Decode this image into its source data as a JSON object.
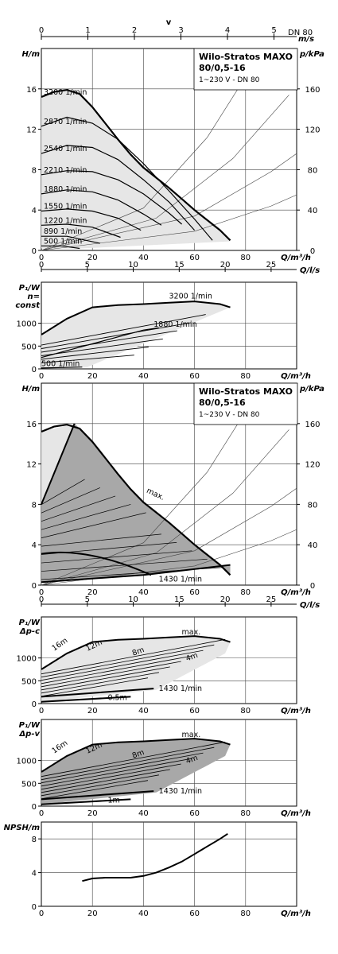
{
  "top_axis": {
    "label_v": "v",
    "ticks": [
      "0",
      "1",
      "2",
      "3",
      "4",
      "5"
    ],
    "dn_label": "DN 80",
    "unit": "m/s"
  },
  "info_box": {
    "title_line1": "Wilo-Stratos MAXO",
    "title_line2": "80/0,5-16",
    "subtitle": "1~230 V - DN 80"
  },
  "chart_data": [
    {
      "id": "hq_speed",
      "type": "line",
      "ylabel": "H/m",
      "ylabel_right": "p/kPa",
      "xlabel": "Q/m³/h",
      "xlim": [
        0,
        100
      ],
      "ylim": [
        0,
        20
      ],
      "xticks": [
        "0",
        "20",
        "40",
        "60",
        "80"
      ],
      "yticks": [
        "0",
        "4",
        "8",
        "12",
        "16"
      ],
      "yticks_right": [
        "0",
        "40",
        "80",
        "120",
        "160"
      ],
      "series": [
        {
          "name": "3200 1/min",
          "x": [
            0,
            5,
            10,
            15,
            20,
            25,
            30,
            35,
            40,
            45,
            50,
            55,
            60,
            65,
            70,
            74
          ],
          "y": [
            15.2,
            15.7,
            15.9,
            15.5,
            14.2,
            12.6,
            11.0,
            9.5,
            8.2,
            7.2,
            6.2,
            5.1,
            4.0,
            3.0,
            2.0,
            1.0
          ]
        },
        {
          "name": "2870 1/min",
          "x": [
            0,
            10,
            20,
            30,
            40,
            50,
            60,
            67
          ],
          "y": [
            12.3,
            13.2,
            12.6,
            11.0,
            8.6,
            5.9,
            3.1,
            1.0
          ]
        },
        {
          "name": "2540 1/min",
          "x": [
            0,
            10,
            20,
            30,
            40,
            50,
            60
          ],
          "y": [
            9.6,
            10.4,
            10.2,
            9.0,
            7.0,
            4.8,
            2.0
          ]
        },
        {
          "name": "2210 1/min",
          "x": [
            0,
            10,
            20,
            30,
            40,
            50,
            55
          ],
          "y": [
            7.5,
            7.9,
            7.8,
            7.0,
            5.6,
            3.7,
            2.6
          ]
        },
        {
          "name": "1880 1/min",
          "x": [
            0,
            10,
            20,
            30,
            40,
            47
          ],
          "y": [
            5.6,
            6.0,
            5.8,
            5.0,
            3.6,
            2.5
          ]
        },
        {
          "name": "1550 1/min",
          "x": [
            0,
            10,
            20,
            30,
            39
          ],
          "y": [
            3.9,
            4.1,
            3.9,
            3.2,
            2.0
          ]
        },
        {
          "name": "1220 1/min",
          "x": [
            0,
            10,
            20,
            31
          ],
          "y": [
            2.5,
            2.6,
            2.3,
            1.3
          ]
        },
        {
          "name": "890 1/min",
          "x": [
            0,
            10,
            23
          ],
          "y": [
            1.4,
            1.4,
            0.7
          ]
        },
        {
          "name": "500 1/min",
          "x": [
            0,
            8,
            15
          ],
          "y": [
            0.45,
            0.45,
            0.2
          ]
        }
      ],
      "system_curves": [
        {
          "x": [
            0,
            40,
            65,
            87
          ],
          "y": [
            0,
            4.2,
            11.2,
            20
          ]
        },
        {
          "x": [
            0,
            45,
            75,
            97
          ],
          "y": [
            0,
            3.2,
            9.1,
            15.4
          ]
        },
        {
          "x": [
            0,
            60,
            90,
            100
          ],
          "y": [
            0,
            3.4,
            7.8,
            9.6
          ]
        },
        {
          "x": [
            0,
            60,
            90,
            100
          ],
          "y": [
            0,
            1.9,
            4.4,
            5.5
          ]
        }
      ]
    },
    {
      "id": "p1_const",
      "type": "line",
      "ylabel": "P₁/W",
      "ylabel_line2": "n=",
      "ylabel_line3": "const",
      "xlabel": "Q/m³/h",
      "xlabel_top": "Q/l/s",
      "xticks": [
        "0",
        "20",
        "40",
        "60",
        "80"
      ],
      "xticks_top": [
        "0",
        "5",
        "10",
        "15",
        "20",
        "25"
      ],
      "yticks": [
        "0",
        "500",
        "1000"
      ],
      "xlim": [
        0,
        100
      ],
      "ylim": [
        0,
        1900
      ],
      "series": [
        {
          "name": "3200 1/min",
          "x": [
            0,
            10,
            20,
            30,
            40,
            50,
            60,
            70,
            74
          ],
          "y": [
            750,
            1100,
            1350,
            1400,
            1420,
            1450,
            1480,
            1420,
            1350
          ]
        },
        {
          "name": "1880 1/min",
          "x": [
            0,
            10,
            20,
            30,
            40,
            46
          ],
          "y": [
            250,
            400,
            550,
            700,
            850,
            900
          ]
        },
        {
          "name": "500 1/min",
          "x": [
            0,
            8,
            16
          ],
          "y": [
            20,
            30,
            40
          ]
        }
      ]
    },
    {
      "id": "hq_control",
      "type": "line",
      "ylabel": "H/m",
      "ylabel_right": "p/kPa",
      "xlabel": "Q/m³/h",
      "xticks": [
        "0",
        "20",
        "40",
        "60",
        "80"
      ],
      "yticks": [
        "0",
        "4",
        "8",
        "12",
        "16"
      ],
      "yticks_right": [
        "0",
        "40",
        "80",
        "120",
        "160"
      ],
      "xlim": [
        0,
        100
      ],
      "ylim": [
        0,
        20
      ],
      "annotations": [
        "max.",
        "1430 1/min"
      ]
    },
    {
      "id": "p1_dpc",
      "type": "line",
      "ylabel": "P₁/W",
      "ylabel_line2": "Δp-c",
      "xlabel": "Q/m³/h",
      "xlabel_top": "Q/l/s",
      "xticks": [
        "0",
        "20",
        "40",
        "60",
        "80"
      ],
      "xticks_top": [
        "0",
        "5",
        "10",
        "15",
        "20",
        "25"
      ],
      "yticks": [
        "0",
        "500",
        "1000"
      ],
      "xlim": [
        0,
        100
      ],
      "ylim": [
        0,
        1900
      ],
      "annotations": [
        "max.",
        "16m",
        "12m",
        "8m",
        "4m",
        "1430 1/min",
        "0.5m"
      ]
    },
    {
      "id": "p1_dpv",
      "type": "line",
      "ylabel": "P₁/W",
      "ylabel_line2": "Δp-v",
      "xlabel": "Q/m³/h",
      "xticks": [
        "0",
        "20",
        "40",
        "60",
        "80"
      ],
      "yticks": [
        "0",
        "500",
        "1000"
      ],
      "xlim": [
        0,
        100
      ],
      "ylim": [
        0,
        1900
      ],
      "annotations": [
        "max.",
        "16m",
        "12m",
        "8m",
        "4m",
        "1430 1/min",
        "1m"
      ]
    },
    {
      "id": "npsh",
      "type": "line",
      "ylabel": "NPSH/m",
      "xlabel": "Q/m³/h",
      "xticks": [
        "0",
        "20",
        "40",
        "60",
        "80"
      ],
      "yticks": [
        "0",
        "4",
        "8"
      ],
      "xlim": [
        0,
        100
      ],
      "ylim": [
        0,
        10
      ],
      "series": [
        {
          "x": [
            16,
            20,
            25,
            30,
            35,
            40,
            45,
            50,
            55,
            60,
            65,
            70,
            73
          ],
          "y": [
            3.0,
            3.3,
            3.4,
            3.4,
            3.4,
            3.6,
            4.0,
            4.6,
            5.3,
            6.2,
            7.1,
            8.0,
            8.6
          ]
        }
      ]
    }
  ]
}
